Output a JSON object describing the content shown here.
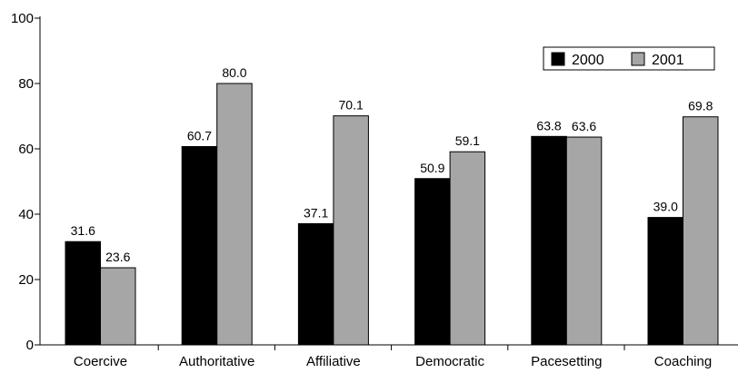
{
  "chart_data": {
    "type": "bar",
    "title": "",
    "xlabel": "",
    "ylabel": "",
    "ylim": [
      0,
      100
    ],
    "yticks": [
      "0",
      "20",
      "40",
      "60",
      "80",
      "100"
    ],
    "categories": [
      "Coercive",
      "Authoritative",
      "Affiliative",
      "Democratic",
      "Pacesetting",
      "Coaching"
    ],
    "series": [
      {
        "name": "2000",
        "color": "#000000",
        "values": [
          31.6,
          60.7,
          37.1,
          50.9,
          63.8,
          39.0
        ],
        "labels": [
          "31.6",
          "60.7",
          "37.1",
          "50.9",
          "63.8",
          "39.0"
        ]
      },
      {
        "name": "2001",
        "color": "#a6a6a6",
        "values": [
          23.6,
          80.0,
          70.1,
          59.1,
          63.6,
          69.8
        ],
        "labels": [
          "23.6",
          "80.0",
          "70.1",
          "59.1",
          "63.6",
          "69.8"
        ]
      }
    ],
    "legend_position": "top-right",
    "grid": false
  }
}
